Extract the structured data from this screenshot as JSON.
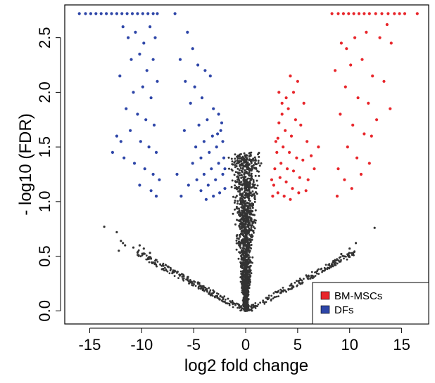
{
  "chart_data": {
    "type": "scatter",
    "title": "",
    "xlabel": "log2 fold change",
    "ylabel": "- log10 (FDR)",
    "xlim": [
      -17.4,
      17.6
    ],
    "ylim": [
      -0.12,
      2.8
    ],
    "xticks": [
      -15,
      -10,
      -5,
      0,
      5,
      10,
      15
    ],
    "xtick_labels": [
      "-15",
      "-10",
      "-5",
      "0",
      "5",
      "10",
      "15"
    ],
    "yticks": [
      0.0,
      0.5,
      1.0,
      1.5,
      2.0,
      2.5
    ],
    "ytick_labels": [
      "0.0",
      "0.5",
      "1.0",
      "1.5",
      "2.0",
      "2.5"
    ],
    "grid": false,
    "legend_position": "bottom-right",
    "colors": {
      "up": "#e8262b",
      "down": "#2e46a8",
      "ns": "#333333"
    },
    "series": [
      {
        "name": "BM-MSCs",
        "color": "#e8262b",
        "points": [
          [
            8.3,
            2.72
          ],
          [
            8.9,
            2.72
          ],
          [
            9.4,
            2.72
          ],
          [
            9.9,
            2.72
          ],
          [
            10.4,
            2.72
          ],
          [
            10.9,
            2.72
          ],
          [
            11.4,
            2.72
          ],
          [
            11.9,
            2.72
          ],
          [
            12.5,
            2.72
          ],
          [
            13.1,
            2.72
          ],
          [
            13.7,
            2.72
          ],
          [
            14.3,
            2.72
          ],
          [
            14.8,
            2.72
          ],
          [
            15.3,
            2.72
          ],
          [
            16.5,
            2.72
          ],
          [
            9.2,
            2.45
          ],
          [
            9.7,
            2.4
          ],
          [
            10.5,
            2.5
          ],
          [
            11.6,
            2.55
          ],
          [
            12.9,
            2.5
          ],
          [
            13.6,
            2.62
          ],
          [
            14.0,
            2.45
          ],
          [
            10.1,
            2.25
          ],
          [
            11.2,
            2.3
          ],
          [
            12.2,
            2.15
          ],
          [
            13.3,
            2.1
          ],
          [
            8.6,
            2.2
          ],
          [
            9.6,
            2.05
          ],
          [
            10.8,
            1.95
          ],
          [
            11.8,
            1.9
          ],
          [
            12.6,
            1.75
          ],
          [
            9.1,
            1.8
          ],
          [
            10.3,
            1.7
          ],
          [
            11.4,
            1.62
          ],
          [
            9.8,
            1.5
          ],
          [
            10.7,
            1.4
          ],
          [
            11.9,
            1.35
          ],
          [
            8.9,
            1.3
          ],
          [
            9.5,
            1.2
          ],
          [
            10.2,
            1.12
          ],
          [
            8.8,
            1.05
          ],
          [
            11.1,
            1.25
          ],
          [
            12.1,
            1.6
          ],
          [
            13.9,
            1.85
          ],
          [
            4.3,
            2.15
          ],
          [
            5.0,
            2.1
          ],
          [
            4.6,
            2.0
          ],
          [
            3.9,
            1.95
          ],
          [
            5.6,
            1.9
          ],
          [
            4.1,
            1.85
          ],
          [
            3.5,
            1.8
          ],
          [
            4.8,
            1.75
          ],
          [
            5.3,
            1.7
          ],
          [
            3.2,
            1.72
          ],
          [
            3.8,
            1.65
          ],
          [
            4.4,
            1.6
          ],
          [
            5.9,
            1.55
          ],
          [
            3.1,
            1.58
          ],
          [
            3.6,
            1.5
          ],
          [
            4.2,
            1.45
          ],
          [
            4.9,
            1.4
          ],
          [
            5.5,
            1.38
          ],
          [
            6.3,
            1.42
          ],
          [
            3.0,
            1.45
          ],
          [
            3.4,
            1.35
          ],
          [
            4.0,
            1.3
          ],
          [
            4.6,
            1.28
          ],
          [
            5.2,
            1.22
          ],
          [
            6.0,
            1.2
          ],
          [
            2.8,
            1.3
          ],
          [
            3.3,
            1.22
          ],
          [
            3.9,
            1.18
          ],
          [
            4.5,
            1.12
          ],
          [
            5.1,
            1.08
          ],
          [
            5.8,
            1.1
          ],
          [
            2.7,
            1.15
          ],
          [
            3.1,
            1.08
          ],
          [
            3.7,
            1.05
          ],
          [
            4.3,
            1.02
          ],
          [
            2.6,
            1.05
          ],
          [
            2.5,
            1.2
          ],
          [
            2.9,
            1.55
          ],
          [
            3.5,
            1.9
          ],
          [
            6.6,
            1.3
          ],
          [
            7.0,
            1.5
          ],
          [
            3.2,
            2.0
          ]
        ]
      },
      {
        "name": "DFs",
        "color": "#2e46a8",
        "points": [
          [
            -16.0,
            2.72
          ],
          [
            -15.4,
            2.72
          ],
          [
            -14.9,
            2.72
          ],
          [
            -14.4,
            2.72
          ],
          [
            -13.9,
            2.72
          ],
          [
            -13.4,
            2.72
          ],
          [
            -12.9,
            2.72
          ],
          [
            -12.4,
            2.72
          ],
          [
            -11.9,
            2.72
          ],
          [
            -11.4,
            2.72
          ],
          [
            -10.9,
            2.72
          ],
          [
            -10.4,
            2.72
          ],
          [
            -9.9,
            2.72
          ],
          [
            -9.4,
            2.72
          ],
          [
            -8.9,
            2.72
          ],
          [
            -8.5,
            2.72
          ],
          [
            -6.8,
            2.72
          ],
          [
            -11.8,
            2.6
          ],
          [
            -11.3,
            2.5
          ],
          [
            -10.6,
            2.55
          ],
          [
            -9.8,
            2.45
          ],
          [
            -9.2,
            2.6
          ],
          [
            -8.7,
            2.5
          ],
          [
            -11.0,
            2.3
          ],
          [
            -10.2,
            2.35
          ],
          [
            -9.5,
            2.2
          ],
          [
            -8.9,
            2.3
          ],
          [
            -12.1,
            2.15
          ],
          [
            -10.8,
            2.0
          ],
          [
            -9.9,
            2.05
          ],
          [
            -9.1,
            1.95
          ],
          [
            -8.5,
            2.1
          ],
          [
            -11.5,
            1.85
          ],
          [
            -10.4,
            1.8
          ],
          [
            -9.6,
            1.75
          ],
          [
            -8.8,
            1.7
          ],
          [
            -12.4,
            1.6
          ],
          [
            -11.1,
            1.65
          ],
          [
            -10.1,
            1.55
          ],
          [
            -9.3,
            1.5
          ],
          [
            -8.6,
            1.45
          ],
          [
            -12.8,
            1.45
          ],
          [
            -11.7,
            1.4
          ],
          [
            -10.7,
            1.35
          ],
          [
            -9.7,
            1.3
          ],
          [
            -8.9,
            1.25
          ],
          [
            -8.3,
            1.2
          ],
          [
            -10.2,
            1.15
          ],
          [
            -9.1,
            1.1
          ],
          [
            -8.6,
            1.05
          ],
          [
            -12.0,
            1.55
          ],
          [
            -5.6,
            2.55
          ],
          [
            -5.1,
            2.4
          ],
          [
            -6.3,
            2.3
          ],
          [
            -4.6,
            2.25
          ],
          [
            -3.9,
            2.2
          ],
          [
            -5.8,
            2.1
          ],
          [
            -4.9,
            2.05
          ],
          [
            -3.4,
            2.15
          ],
          [
            -4.2,
            1.95
          ],
          [
            -5.3,
            1.9
          ],
          [
            -3.1,
            1.85
          ],
          [
            -2.6,
            1.8
          ],
          [
            -3.7,
            1.75
          ],
          [
            -4.5,
            1.7
          ],
          [
            -5.9,
            1.65
          ],
          [
            -2.4,
            1.65
          ],
          [
            -3.2,
            1.6
          ],
          [
            -4.0,
            1.55
          ],
          [
            -4.8,
            1.5
          ],
          [
            -2.2,
            1.55
          ],
          [
            -2.8,
            1.5
          ],
          [
            -3.5,
            1.45
          ],
          [
            -4.3,
            1.4
          ],
          [
            -5.1,
            1.35
          ],
          [
            -2.1,
            1.4
          ],
          [
            -2.6,
            1.35
          ],
          [
            -3.3,
            1.3
          ],
          [
            -4.0,
            1.25
          ],
          [
            -4.7,
            1.2
          ],
          [
            -5.5,
            1.15
          ],
          [
            -2.2,
            1.25
          ],
          [
            -2.9,
            1.2
          ],
          [
            -3.6,
            1.15
          ],
          [
            -4.3,
            1.1
          ],
          [
            -2.0,
            1.12
          ],
          [
            -2.5,
            1.08
          ],
          [
            -3.1,
            1.05
          ],
          [
            -3.8,
            1.02
          ],
          [
            -6.2,
            1.05
          ],
          [
            -6.6,
            1.25
          ],
          [
            -2.3,
            1.72
          ],
          [
            -2.0,
            1.3
          ],
          [
            -2.7,
            1.62
          ]
        ]
      }
    ],
    "non_significant": {
      "name": "",
      "color": "#333333",
      "points": [
        [
          -13.6,
          0.77
        ],
        [
          -12.4,
          0.72
        ],
        [
          -12.0,
          0.64
        ],
        [
          -11.6,
          0.6
        ],
        [
          -10.8,
          0.58
        ],
        [
          -12.2,
          0.55
        ],
        [
          -11.8,
          0.62
        ],
        [
          -10.2,
          0.6
        ],
        [
          -9.8,
          0.57
        ],
        [
          -9.2,
          0.53
        ],
        [
          12.4,
          0.76
        ],
        [
          10.6,
          0.62
        ],
        [
          10.0,
          0.57
        ],
        [
          9.2,
          0.52
        ]
      ]
    }
  },
  "legend": {
    "items": [
      {
        "label": "BM-MSCs",
        "color": "#e8262b"
      },
      {
        "label": "DFs",
        "color": "#2e46a8"
      }
    ]
  }
}
